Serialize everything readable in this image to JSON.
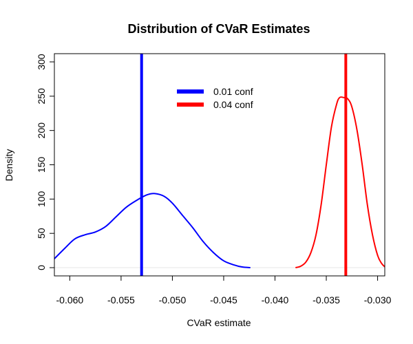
{
  "chart_data": {
    "type": "line",
    "title": "Distribution of CVaR Estimates",
    "xlabel": "CVaR estimate",
    "ylabel": "Density",
    "xlim": [
      -0.0615,
      -0.0293
    ],
    "ylim": [
      -12,
      312
    ],
    "x_ticks": [
      -0.06,
      -0.055,
      -0.05,
      -0.045,
      -0.04,
      -0.035,
      -0.03
    ],
    "x_tick_labels": [
      "-0.060",
      "-0.055",
      "-0.050",
      "-0.045",
      "-0.040",
      "-0.035",
      "-0.030"
    ],
    "y_ticks": [
      0,
      50,
      100,
      150,
      200,
      250,
      300
    ],
    "y_tick_labels": [
      "0",
      "50",
      "100",
      "150",
      "200",
      "250",
      "300"
    ],
    "grid": false,
    "legend_position": "top-center",
    "baseline": 0,
    "baseline_color": "#e6e6e6",
    "series": [
      {
        "name": "0.01 conf",
        "color": "#0000ff",
        "x": [
          -0.0617,
          -0.0605,
          -0.0595,
          -0.0585,
          -0.0575,
          -0.0565,
          -0.0555,
          -0.0545,
          -0.0535,
          -0.0525,
          -0.0517,
          -0.0508,
          -0.05,
          -0.049,
          -0.048,
          -0.047,
          -0.046,
          -0.045,
          -0.044,
          -0.0432,
          -0.0424
        ],
        "y": [
          10,
          28,
          42,
          48,
          52,
          60,
          74,
          88,
          98,
          106,
          108,
          104,
          94,
          76,
          58,
          38,
          22,
          10,
          4,
          1,
          0
        ],
        "vline": -0.053
      },
      {
        "name": "0.04 conf",
        "color": "#ff0000",
        "x": [
          -0.038,
          -0.0375,
          -0.037,
          -0.0365,
          -0.036,
          -0.0355,
          -0.035,
          -0.0345,
          -0.034,
          -0.0337,
          -0.0333,
          -0.0329,
          -0.0325,
          -0.032,
          -0.0315,
          -0.031,
          -0.0305,
          -0.03,
          -0.0296,
          -0.0292
        ],
        "y": [
          0,
          2,
          8,
          22,
          48,
          92,
          150,
          205,
          238,
          248,
          248,
          246,
          234,
          200,
          150,
          92,
          48,
          18,
          6,
          0
        ],
        "vline": -0.0331
      }
    ]
  }
}
